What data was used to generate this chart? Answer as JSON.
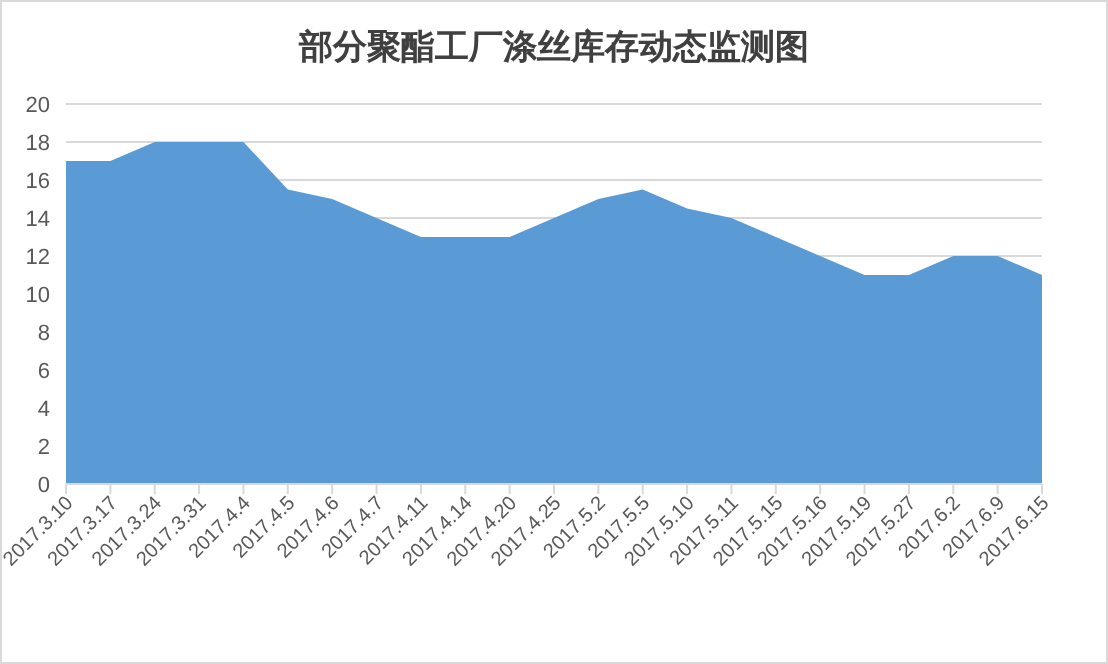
{
  "chart_data": {
    "type": "area",
    "title": "部分聚酯工厂涤丝库存动态监测图",
    "categories": [
      "2017.3.10",
      "2017.3.17",
      "2017.3.24",
      "2017.3.31",
      "2017.4.4",
      "2017.4.5",
      "2017.4.6",
      "2017.4.7",
      "2017.4.11",
      "2017.4.14",
      "2017.4.20",
      "2017.4.25",
      "2017.5.2",
      "2017.5.5",
      "2017.5.10",
      "2017.5.11",
      "2017.5.15",
      "2017.5.16",
      "2017.5.19",
      "2017.5.27",
      "2017.6.2",
      "2017.6.9",
      "2017.6.15"
    ],
    "series": [
      {
        "color": "#5b9bd5",
        "values": [
          17,
          17,
          18,
          18,
          18,
          15.5,
          15,
          14,
          13,
          13,
          13,
          14,
          15,
          15.5,
          14.5,
          14,
          13,
          12,
          11,
          11,
          12,
          12,
          11
        ]
      }
    ],
    "ylim": [
      0,
      20
    ],
    "yticks": [
      0,
      2,
      4,
      6,
      8,
      10,
      12,
      14,
      16,
      18,
      20
    ],
    "grid": "y"
  }
}
